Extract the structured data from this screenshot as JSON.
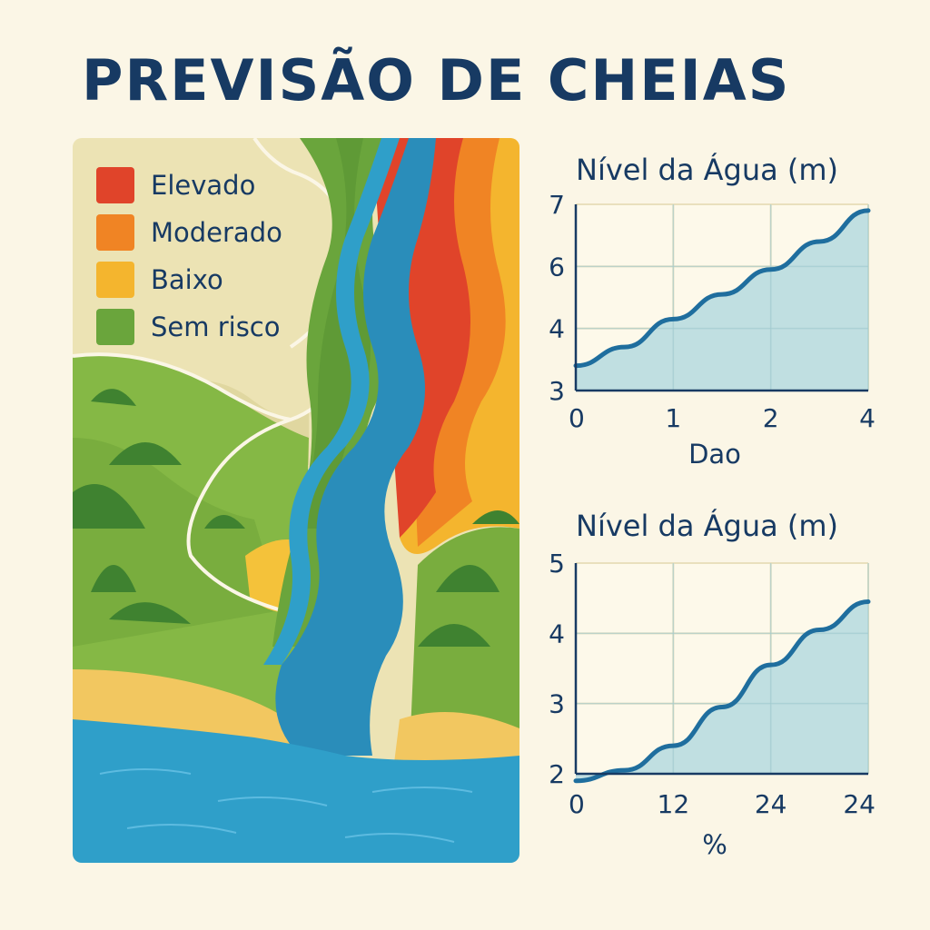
{
  "title": "PREVISÃO DE CHEIAS",
  "legend": [
    {
      "label": "Elevado",
      "color": "#e0442a"
    },
    {
      "label": "Moderado",
      "color": "#f08424"
    },
    {
      "label": "Baixo",
      "color": "#f4b52e"
    },
    {
      "label": "Sem risco",
      "color": "#6aa53c"
    }
  ],
  "chart_data": [
    {
      "type": "area",
      "title": "Nível da Água (m)",
      "xlabel": "Dao",
      "ylabel": "",
      "x_ticks": [
        "0",
        "1",
        "2",
        "4"
      ],
      "y_ticks": [
        "3",
        "4",
        "6",
        "7"
      ],
      "x": [
        0,
        0.5,
        1,
        1.5,
        2,
        2.5,
        3
      ],
      "values": [
        3.4,
        3.7,
        4.3,
        5.1,
        5.9,
        6.4,
        6.9
      ],
      "line_color": "#1f6e9e",
      "fill_color": "#b9dbe0",
      "grid": true
    },
    {
      "type": "area",
      "title": "Nível da Água (m)",
      "xlabel": "%",
      "ylabel": "",
      "x_ticks": [
        "0",
        "12",
        "24",
        "24"
      ],
      "y_ticks": [
        "2",
        "3",
        "4",
        "5"
      ],
      "x": [
        0,
        0.5,
        1,
        1.5,
        2,
        2.5,
        3
      ],
      "values": [
        1.9,
        2.05,
        2.4,
        2.95,
        3.55,
        4.05,
        4.45
      ],
      "line_color": "#1f6e9e",
      "fill_color": "#b9dbe0",
      "grid": true
    }
  ]
}
